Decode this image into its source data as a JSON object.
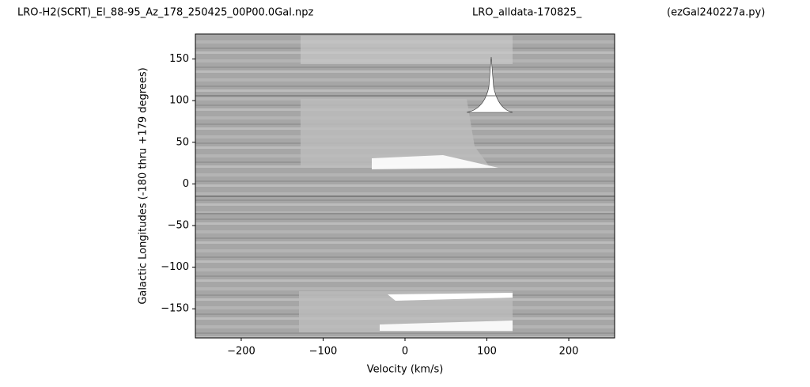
{
  "chart_data": {
    "type": "image",
    "title_parts": [
      "LRO-H2(SCRT)_El_88-95_Az_178_250425_00P00.0Gal.npz",
      "LRO_alldata-170825_",
      "(ezGal240227a.py)"
    ],
    "xlabel": "Velocity (km/s)",
    "ylabel": "Galactic Longitudes    (-180 thru +179 degrees)",
    "xlim": [
      -256,
      256
    ],
    "ylim": [
      -185,
      180
    ],
    "xticks": [
      {
        "value": -200,
        "label": "−200"
      },
      {
        "value": -100,
        "label": "−100"
      },
      0,
      100,
      200
    ],
    "yticks": [
      {
        "value": -150,
        "label": "−150"
      },
      {
        "value": -100,
        "label": "−100"
      },
      {
        "value": -50,
        "label": "−50"
      },
      0,
      50,
      100,
      150
    ]
  }
}
